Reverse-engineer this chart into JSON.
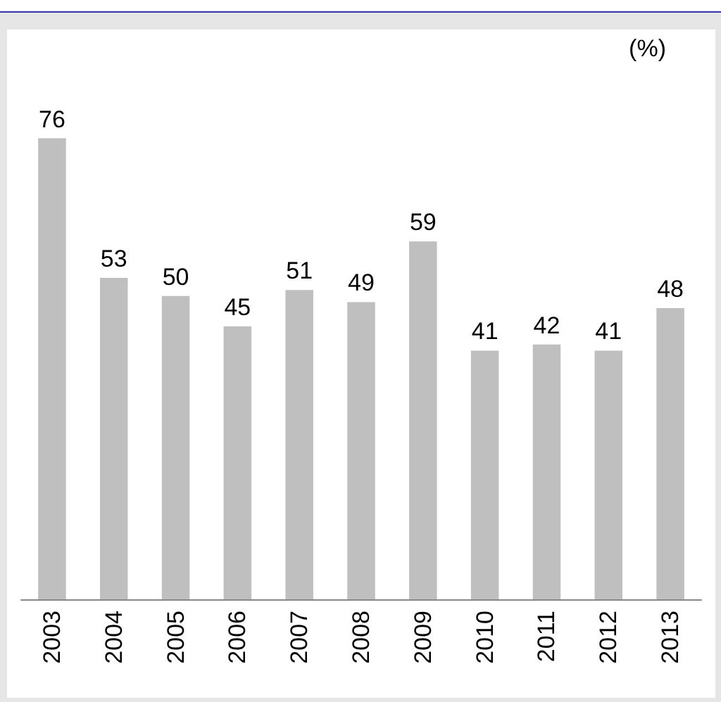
{
  "chart_data": {
    "type": "bar",
    "ylabel": "(%)",
    "categories": [
      "2003",
      "2004",
      "2005",
      "2006",
      "2007",
      "2008",
      "2009",
      "2010",
      "2011",
      "2012",
      "2013"
    ],
    "values": [
      76,
      53,
      50,
      45,
      51,
      49,
      59,
      41,
      42,
      41,
      48
    ],
    "color": "#bfbfbf",
    "data_labels": true,
    "tick_labels": "x"
  }
}
